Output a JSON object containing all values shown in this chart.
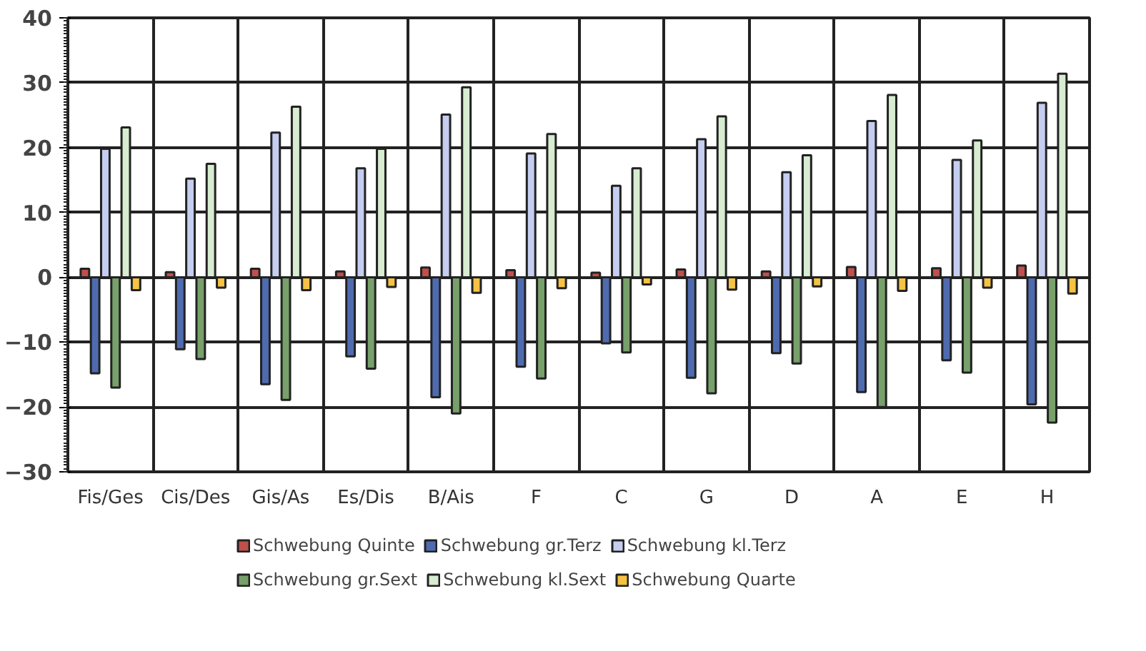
{
  "chart_data": {
    "type": "bar",
    "categories": [
      "Fis/Ges",
      "Cis/Des",
      "Gis/As",
      "Es/Dis",
      "B/Ais",
      "F",
      "C",
      "G",
      "D",
      "A",
      "E",
      "H"
    ],
    "series": [
      {
        "name": "Schwebung Quinte",
        "color": "#c0504d",
        "values": [
          1.3,
          0.8,
          1.3,
          0.9,
          1.5,
          1.1,
          0.7,
          1.2,
          0.9,
          1.6,
          1.4,
          1.8
        ]
      },
      {
        "name": "Schwebung gr.Terz",
        "color": "#4f6bb0",
        "values": [
          -14.8,
          -11.1,
          -16.5,
          -12.2,
          -18.5,
          -13.8,
          -10.2,
          -15.5,
          -11.7,
          -17.7,
          -12.8,
          -19.6
        ]
      },
      {
        "name": "Schwebung kl.Terz",
        "color": "#c5cdf0",
        "values": [
          19.8,
          15.2,
          22.3,
          16.8,
          25.1,
          19.1,
          14.1,
          21.3,
          16.2,
          24.1,
          18.1,
          26.9
        ]
      },
      {
        "name": "Schwebung gr.Sext",
        "color": "#77a06a",
        "values": [
          -17.0,
          -12.6,
          -18.9,
          -14.1,
          -21.0,
          -15.6,
          -11.6,
          -17.9,
          -13.3,
          -20.0,
          -14.7,
          -22.4
        ]
      },
      {
        "name": "Schwebung kl.Sext",
        "color": "#d7ecd0",
        "values": [
          23.1,
          17.5,
          26.3,
          19.8,
          29.3,
          22.1,
          16.8,
          24.8,
          18.8,
          28.1,
          21.1,
          31.4
        ]
      },
      {
        "name": "Schwebung Quarte",
        "color": "#f5c242",
        "values": [
          -2.0,
          -1.6,
          -2.0,
          -1.5,
          -2.4,
          -1.7,
          -1.1,
          -1.9,
          -1.4,
          -2.1,
          -1.6,
          -2.5
        ]
      }
    ],
    "ylim": [
      -30,
      40
    ],
    "yticks": [
      -30,
      -20,
      -10,
      0,
      10,
      20,
      30,
      40
    ],
    "grid": true,
    "legend": "bottom"
  }
}
